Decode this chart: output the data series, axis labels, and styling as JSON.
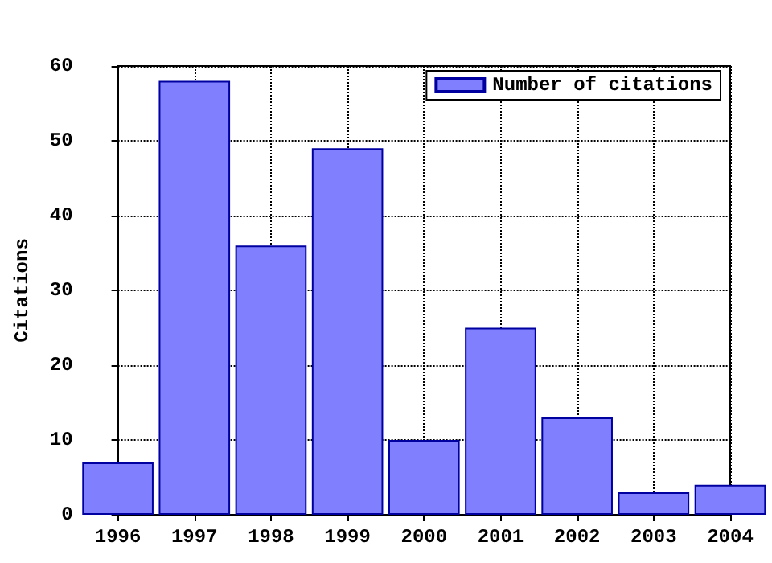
{
  "chart_data": {
    "type": "bar",
    "ylabel": "Citations",
    "x": [
      1996,
      1997,
      1998,
      1999,
      2000,
      2001,
      2002,
      2003,
      2004
    ],
    "series": [
      {
        "name": "Number of citations",
        "color": "#8080ff",
        "values": [
          7,
          58,
          36,
          49,
          10,
          25,
          13,
          3,
          4
        ]
      }
    ],
    "xlim": [
      1996,
      2004
    ],
    "xticks": [
      1996,
      1997,
      1998,
      1999,
      2000,
      2001,
      2002,
      2003,
      2004
    ],
    "ylim": [
      0,
      60
    ],
    "yticks": [
      0,
      10,
      20,
      30,
      40,
      50,
      60
    ],
    "grid": true,
    "legend": "top right"
  }
}
